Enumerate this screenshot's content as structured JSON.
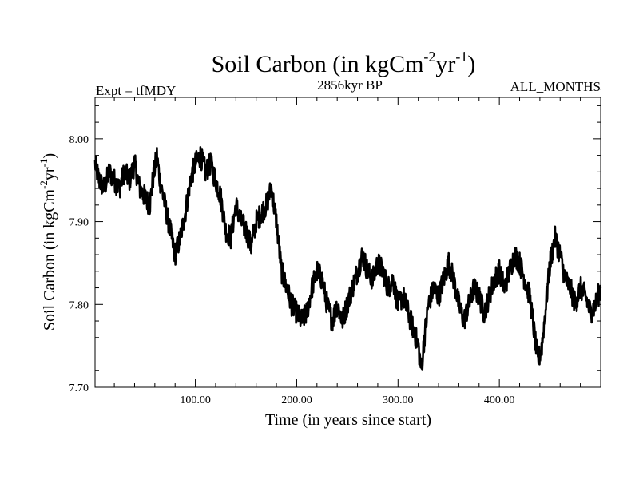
{
  "chart_data": {
    "type": "line",
    "title_main": "Soil Carbon (in kgCm",
    "title_sup1": "-2",
    "title_mid": "yr",
    "title_sup2": "-1",
    "title_end": ")",
    "experiment_label": "Expt = tfMDY",
    "period_label": "2856kyr BP",
    "months_label": "ALL_MONTHS",
    "xlabel": "Time (in years since start)",
    "ylabel_main": "Soil Carbon (in kgCm",
    "ylabel_sup1": "-2",
    "ylabel_mid": "yr",
    "ylabel_sup2": "-1",
    "ylabel_end": ")",
    "xlim": [
      1,
      500
    ],
    "ylim": [
      7.7,
      8.05
    ],
    "x_ticks": [
      100,
      200,
      300,
      400
    ],
    "x_tick_labels": [
      "100.00",
      "200.00",
      "300.00",
      "400.00"
    ],
    "y_ticks": [
      7.7,
      7.8,
      7.9,
      8.0
    ],
    "y_tick_labels": [
      "7.70",
      "7.80",
      "7.90",
      "8.00"
    ],
    "x_minor_step": 20,
    "y_minor_step": 0.02,
    "series": [
      {
        "name": "Soil Carbon",
        "color": "#000000",
        "x": [
          1,
          5,
          10,
          15,
          20,
          25,
          30,
          35,
          40,
          45,
          50,
          55,
          58,
          62,
          65,
          70,
          75,
          80,
          85,
          90,
          95,
          100,
          105,
          110,
          115,
          120,
          125,
          130,
          135,
          140,
          145,
          150,
          155,
          160,
          165,
          170,
          175,
          180,
          185,
          190,
          195,
          200,
          205,
          210,
          215,
          220,
          225,
          230,
          235,
          240,
          245,
          250,
          255,
          260,
          265,
          270,
          275,
          280,
          285,
          290,
          295,
          300,
          305,
          310,
          315,
          320,
          323,
          326,
          330,
          335,
          340,
          345,
          350,
          355,
          360,
          365,
          370,
          375,
          380,
          385,
          390,
          395,
          400,
          405,
          410,
          415,
          420,
          425,
          430,
          435,
          438,
          442,
          446,
          450,
          455,
          460,
          465,
          470,
          475,
          480,
          485,
          490,
          495,
          500
        ],
        "values": [
          7.97,
          7.95,
          7.94,
          7.96,
          7.95,
          7.94,
          7.96,
          7.95,
          7.97,
          7.94,
          7.93,
          7.92,
          7.95,
          7.98,
          7.95,
          7.92,
          7.89,
          7.86,
          7.88,
          7.91,
          7.95,
          7.97,
          7.98,
          7.96,
          7.97,
          7.95,
          7.93,
          7.89,
          7.88,
          7.92,
          7.9,
          7.89,
          7.87,
          7.9,
          7.91,
          7.92,
          7.94,
          7.9,
          7.84,
          7.82,
          7.8,
          7.79,
          7.78,
          7.79,
          7.82,
          7.84,
          7.83,
          7.8,
          7.78,
          7.8,
          7.78,
          7.8,
          7.82,
          7.84,
          7.86,
          7.84,
          7.83,
          7.85,
          7.84,
          7.82,
          7.83,
          7.8,
          7.81,
          7.79,
          7.77,
          7.75,
          7.72,
          7.76,
          7.8,
          7.82,
          7.81,
          7.83,
          7.85,
          7.83,
          7.8,
          7.78,
          7.8,
          7.82,
          7.81,
          7.79,
          7.81,
          7.83,
          7.84,
          7.82,
          7.84,
          7.86,
          7.85,
          7.83,
          7.81,
          7.76,
          7.73,
          7.75,
          7.8,
          7.85,
          7.88,
          7.86,
          7.83,
          7.82,
          7.8,
          7.82,
          7.81,
          7.79,
          7.8,
          7.82
        ]
      }
    ]
  }
}
